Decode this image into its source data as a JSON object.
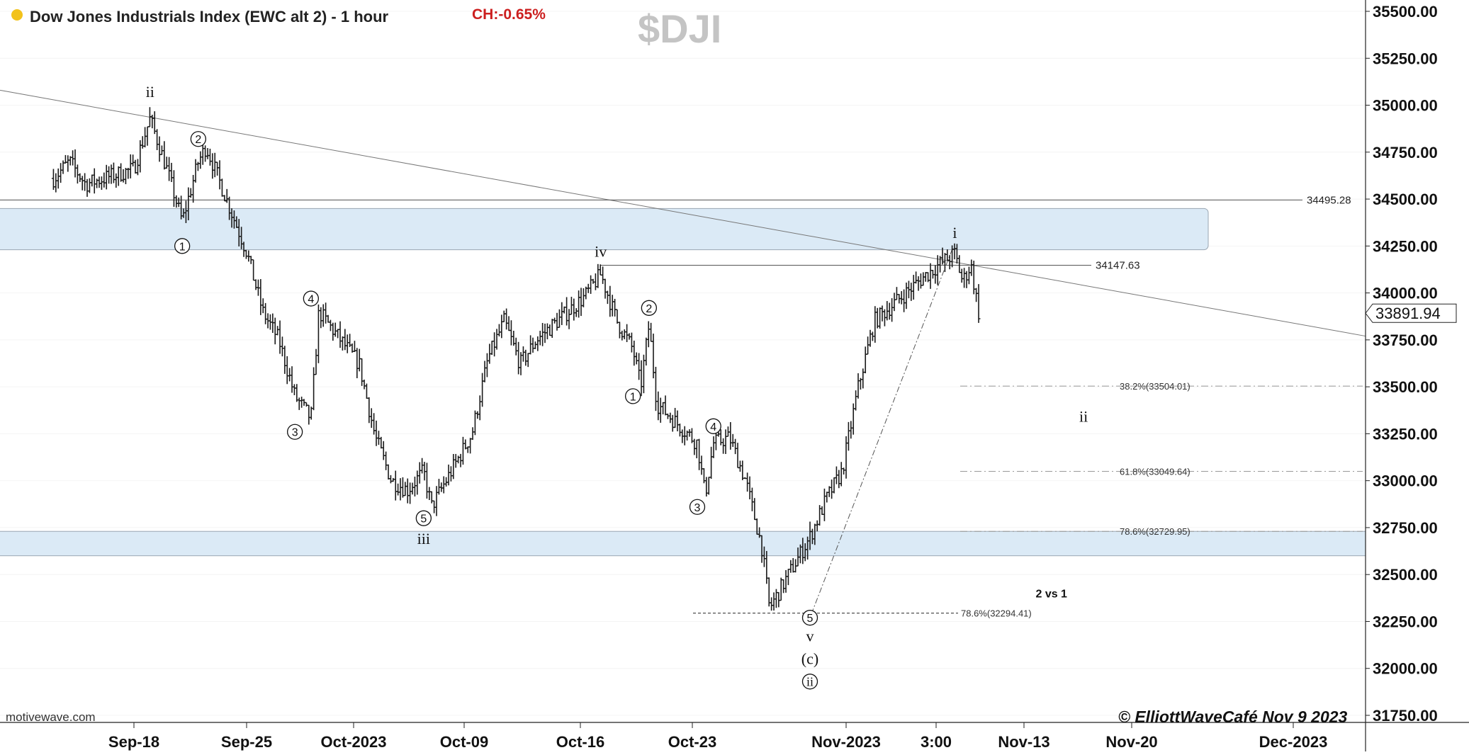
{
  "header": {
    "title": "Dow Jones Industrials Index (EWC alt 2) - 1 hour",
    "change": "CH:-0.65%",
    "watermark": "$DJI",
    "status_dot_color": "#f2c21b",
    "change_color": "#cc1f1f"
  },
  "footer": {
    "source": "motivewave.com",
    "copyright": "© ElliottWaveCafé Nov 9 2023"
  },
  "chart_data": {
    "type": "ohlc",
    "ylim": [
      31650,
      35540
    ],
    "y_ticks": [
      "31750.00",
      "32000.00",
      "32250.00",
      "32500.00",
      "32750.00",
      "33000.00",
      "33250.00",
      "33500.00",
      "33750.00",
      "34000.00",
      "34250.00",
      "34500.00",
      "34750.00",
      "35000.00",
      "35250.00",
      "35500.00"
    ],
    "x_ticks": [
      "Sep-18",
      "Sep-25",
      "Oct-2023",
      "Oct-09",
      "Oct-16",
      "Oct-23",
      "Nov-2023",
      "3:00",
      "Nov-13",
      "Nov-20",
      "Dec-2023"
    ],
    "last_price": "33891.94",
    "colors": {
      "bars": "#1a1a1a",
      "zone": "#dbeaf6",
      "zone_border": "#9aa6b2",
      "grid": "#d8d8d8"
    },
    "path_points": [
      [
        "Sep-13",
        34610
      ],
      [
        "Sep-14",
        34700
      ],
      [
        "Sep-15",
        34580
      ],
      [
        "Sep-18",
        34660
      ],
      [
        "Sep-19",
        34930
      ],
      [
        "Sep-20",
        34670
      ],
      [
        "Sep-21",
        34380
      ],
      [
        "Sep-22",
        34700
      ],
      [
        "Sep-22",
        34780
      ],
      [
        "Sep-25",
        34220
      ],
      [
        "Sep-26",
        33900
      ],
      [
        "Sep-27",
        33750
      ],
      [
        "Sep-28",
        33450
      ],
      [
        "Sep-29",
        33330
      ],
      [
        "Sep-29",
        33900
      ],
      [
        "Oct-02",
        33620
      ],
      [
        "Oct-03",
        33230
      ],
      [
        "Oct-04",
        33000
      ],
      [
        "Oct-05",
        32950
      ],
      [
        "Oct-06",
        33050
      ],
      [
        "Oct-06",
        32860
      ],
      [
        "Oct-09",
        33250
      ],
      [
        "Oct-10",
        33650
      ],
      [
        "Oct-11",
        33850
      ],
      [
        "Oct-12",
        33620
      ],
      [
        "Oct-13",
        33750
      ],
      [
        "Oct-16",
        33980
      ],
      [
        "Oct-17",
        34100
      ],
      [
        "Oct-18",
        33850
      ],
      [
        "Oct-19",
        33700
      ],
      [
        "Oct-19",
        33500
      ],
      [
        "Oct-20",
        33830
      ],
      [
        "Oct-20",
        33410
      ],
      [
        "Oct-23",
        33200
      ],
      [
        "Oct-23",
        32920
      ],
      [
        "Oct-24",
        33200
      ],
      [
        "Oct-25",
        33230
      ],
      [
        "Oct-26",
        33000
      ],
      [
        "Oct-27",
        32650
      ],
      [
        "Oct-27",
        32320
      ],
      [
        "Oct-30",
        32700
      ],
      [
        "Oct-31",
        32900
      ],
      [
        "Nov-01",
        33050
      ],
      [
        "Nov-02",
        33500
      ],
      [
        "Nov-03",
        33850
      ],
      [
        "Nov-06",
        34080
      ],
      [
        "Nov-07",
        34150
      ],
      [
        "Nov-08",
        34210
      ],
      [
        "Nov-08",
        34060
      ],
      [
        "Nov-09",
        34150
      ],
      [
        "Nov-09",
        33891.94
      ]
    ],
    "horizontal_levels": [
      {
        "label": "34495.28",
        "value": 34495.28
      },
      {
        "label": "34147.63",
        "value": 34147.63
      }
    ],
    "zones": [
      {
        "from": 34230,
        "to": 34450
      },
      {
        "from": 32600,
        "to": 32730
      }
    ],
    "fib_levels": [
      {
        "label": "38.2%(33504.01)",
        "value": 33504.01
      },
      {
        "label": "61.8%(33049.64)",
        "value": 33049.64
      },
      {
        "label": "78.6%(32729.95)",
        "value": 32729.95
      },
      {
        "label": "78.6%(32294.41)",
        "value": 32294.41
      }
    ],
    "wave_labels": [
      {
        "text": "ii",
        "date": "Sep-19",
        "price": 35070,
        "style": "roman"
      },
      {
        "text": "2",
        "date": "Sep-22",
        "price": 34820,
        "style": "circle"
      },
      {
        "text": "1",
        "date": "Sep-21",
        "price": 34250,
        "style": "circle"
      },
      {
        "text": "4",
        "date": "Sep-29",
        "price": 33970,
        "style": "circle"
      },
      {
        "text": "3",
        "date": "Sep-28",
        "price": 33260,
        "style": "circle"
      },
      {
        "text": "5",
        "date": "Oct-06",
        "price": 32800,
        "style": "circle"
      },
      {
        "text": "iii",
        "date": "Oct-06",
        "price": 32690,
        "style": "roman"
      },
      {
        "text": "iv",
        "date": "Oct-17",
        "price": 34220,
        "style": "roman"
      },
      {
        "text": "2",
        "date": "Oct-20",
        "price": 33920,
        "style": "circle"
      },
      {
        "text": "1",
        "date": "Oct-19",
        "price": 33450,
        "style": "circle"
      },
      {
        "text": "4",
        "date": "Oct-24",
        "price": 33290,
        "style": "circle"
      },
      {
        "text": "3",
        "date": "Oct-23",
        "price": 32860,
        "style": "circle"
      },
      {
        "text": "5",
        "date": "Oct-30",
        "price": 32270,
        "style": "circle"
      },
      {
        "text": "v",
        "date": "Oct-30",
        "price": 32170,
        "style": "roman"
      },
      {
        "text": "(c)",
        "date": "Oct-30",
        "price": 32050,
        "style": "roman"
      },
      {
        "text": "ii",
        "date": "Oct-30",
        "price": 31930,
        "style": "circle-roman"
      },
      {
        "text": "i",
        "date": "Nov-08",
        "price": 34320,
        "style": "roman"
      },
      {
        "text": "ii",
        "date": "Nov-16",
        "price": 33340,
        "style": "roman"
      }
    ],
    "annotations": [
      {
        "text": "2 vs 1",
        "date": "Nov-14",
        "price": 32400
      }
    ]
  }
}
